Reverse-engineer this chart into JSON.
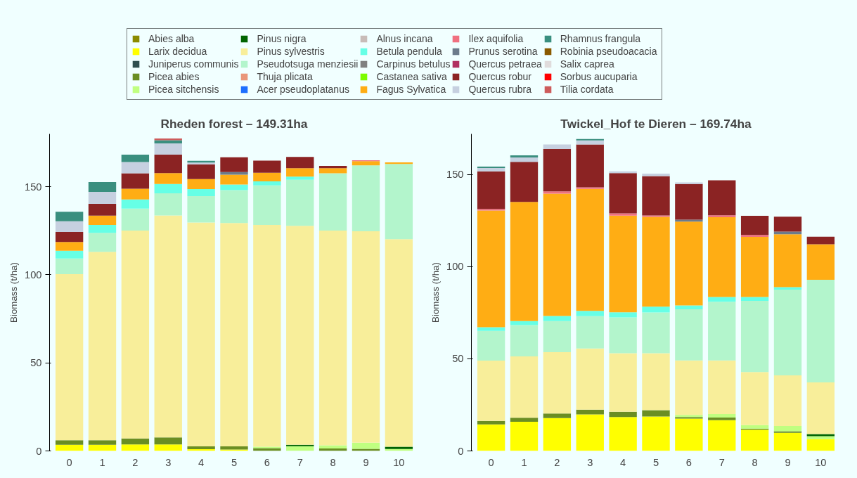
{
  "chart_data": [
    {
      "type": "bar",
      "stacked": true,
      "title": "Rheden forest – 149.31ha",
      "ylabel": "Biomass (t/ha)",
      "categories": [
        "0",
        "1",
        "2",
        "3",
        "4",
        "5",
        "6",
        "7",
        "8",
        "9",
        "10"
      ],
      "ylim": [
        0,
        180
      ],
      "yticks": [
        0,
        50,
        100,
        150
      ],
      "grid": false,
      "legend": "top",
      "series": [
        {
          "name": "Abies alba",
          "color": "#8b8b00",
          "values": [
            0,
            0,
            0,
            0,
            0,
            0,
            0,
            0,
            0,
            0,
            0
          ]
        },
        {
          "name": "Larix decidua",
          "color": "#ffff00",
          "values": [
            3.5,
            3.5,
            3.7,
            3.7,
            1.0,
            0.8,
            0,
            0,
            0,
            0,
            0
          ]
        },
        {
          "name": "Juniperus communis",
          "color": "#2f4f4f",
          "values": [
            0,
            0,
            0,
            0,
            0,
            0,
            0,
            0,
            0,
            0,
            0
          ]
        },
        {
          "name": "Picea abies",
          "color": "#6b8e23",
          "values": [
            2.6,
            2.6,
            3.4,
            4.0,
            1.6,
            1.8,
            1.6,
            0,
            1.4,
            1.2,
            0
          ]
        },
        {
          "name": "Picea sitchensis",
          "color": "#c0ff80",
          "values": [
            0,
            0,
            0,
            0,
            0,
            0,
            0.8,
            2.7,
            1.8,
            3.5,
            1.1
          ]
        },
        {
          "name": "Pinus nigra",
          "color": "#006400",
          "values": [
            0,
            0,
            0,
            0,
            0,
            0,
            0,
            0.8,
            0,
            0,
            1.3
          ]
        },
        {
          "name": "Pinus sylvestris",
          "color": "#f8ee9a",
          "values": [
            94.3,
            106.9,
            118,
            126,
            127.1,
            126.8,
            125.9,
            124.3,
            121.9,
            120,
            117.8
          ]
        },
        {
          "name": "Pseudotsuga menziesii",
          "color": "#b3f5cc",
          "values": [
            8.9,
            10.8,
            12.5,
            12.6,
            15,
            18.7,
            22.5,
            26.2,
            32.5,
            37.4,
            42.7
          ]
        },
        {
          "name": "Thuja plicata",
          "color": "#e9967a",
          "values": [
            0,
            0,
            0,
            0,
            0,
            0,
            0,
            0,
            0,
            0,
            0
          ]
        },
        {
          "name": "Acer pseudoplatanus",
          "color": "#1e6fff",
          "values": [
            0,
            0,
            0,
            0,
            0,
            0,
            0,
            0,
            0,
            0,
            0
          ]
        },
        {
          "name": "Alnus incana",
          "color": "#c8bcb8",
          "values": [
            0,
            0,
            0,
            0,
            0,
            0,
            0,
            0,
            0,
            0,
            0
          ]
        },
        {
          "name": "Betula pendula",
          "color": "#66ffe6",
          "values": [
            4.3,
            4.5,
            5.2,
            5.3,
            4,
            3.2,
            2.3,
            1.8,
            0,
            0,
            0
          ]
        },
        {
          "name": "Carpinus betulus",
          "color": "#808080",
          "values": [
            0,
            0,
            0,
            0,
            0,
            0,
            0,
            0,
            0,
            0,
            0
          ]
        },
        {
          "name": "Castanea sativa",
          "color": "#7cfc00",
          "values": [
            0,
            0,
            0,
            0,
            0,
            0,
            0,
            0,
            0,
            0,
            0
          ]
        },
        {
          "name": "Fagus Sylvatica",
          "color": "#ffad14",
          "values": [
            5,
            5.3,
            6.1,
            6.1,
            5.7,
            5.6,
            4.8,
            4.7,
            2.9,
            2.4,
            0.9
          ]
        },
        {
          "name": "Ilex aquifolia",
          "color": "#f07080",
          "values": [
            0,
            0,
            0,
            0,
            0,
            0,
            0,
            0,
            0,
            0.5,
            0
          ]
        },
        {
          "name": "Prunus serotina",
          "color": "#6c7b8b",
          "values": [
            0,
            0,
            0,
            0,
            0,
            1.4,
            0,
            0,
            0,
            0,
            0
          ]
        },
        {
          "name": "Quercus petraea",
          "color": "#b03060",
          "values": [
            0,
            0,
            0,
            0,
            0,
            0,
            0,
            0,
            0,
            0,
            0
          ]
        },
        {
          "name": "Quercus robur",
          "color": "#8b2323",
          "values": [
            5.7,
            6.7,
            8.7,
            10.5,
            8.2,
            8.4,
            6.9,
            6.4,
            1.3,
            0,
            0
          ]
        },
        {
          "name": "Quercus rubra",
          "color": "#c6d0e0",
          "values": [
            6.1,
            6.8,
            6.4,
            6.4,
            1.1,
            0,
            0,
            0,
            0,
            0,
            0
          ]
        },
        {
          "name": "Rhamnus frangula",
          "color": "#3a8f7f",
          "values": [
            5.4,
            5.6,
            4.2,
            1.8,
            1.0,
            0,
            0,
            0,
            0,
            0,
            0
          ]
        },
        {
          "name": "Robinia pseudoacacia",
          "color": "#8b5a00",
          "values": [
            0,
            0,
            0,
            0,
            0,
            0,
            0,
            0,
            0,
            0,
            0
          ]
        },
        {
          "name": "Salix caprea",
          "color": "#e0dcdc",
          "values": [
            0,
            0,
            0,
            0,
            0,
            0,
            0,
            0,
            0,
            0,
            0
          ]
        },
        {
          "name": "Sorbus aucuparia",
          "color": "#ff0000",
          "values": [
            0,
            0,
            0,
            0,
            0,
            0,
            0,
            0,
            0,
            0,
            0
          ]
        },
        {
          "name": "Tilia cordata",
          "color": "#cd5c5c",
          "values": [
            0,
            0,
            0,
            1.0,
            0,
            0,
            0,
            0,
            0,
            0,
            0
          ]
        }
      ]
    },
    {
      "type": "bar",
      "stacked": true,
      "title": "Twickel_Hof te Dieren – 169.74ha",
      "ylabel": "Biomass (t/ha)",
      "categories": [
        "0",
        "1",
        "2",
        "3",
        "4",
        "5",
        "6",
        "7",
        "8",
        "9",
        "10"
      ],
      "ylim": [
        0,
        172
      ],
      "yticks": [
        0,
        50,
        100,
        150
      ],
      "grid": false,
      "series": [
        {
          "color": "#8b8b00",
          "values": [
            0,
            0,
            0,
            0,
            0,
            0,
            0,
            0,
            0,
            0,
            0
          ]
        },
        {
          "color": "#ffff00",
          "values": [
            14.4,
            15.8,
            17.8,
            19.8,
            18.4,
            18.7,
            17.5,
            16.7,
            11.5,
            9.8,
            6.4
          ]
        },
        {
          "color": "#2f4f4f",
          "values": [
            0,
            0,
            0,
            0,
            0,
            0,
            0,
            0,
            0,
            0,
            0
          ]
        },
        {
          "color": "#6b8e23",
          "values": [
            1.9,
            2.2,
            2.5,
            2.6,
            2.9,
            3.4,
            0.9,
            1.4,
            0.6,
            0.9,
            0
          ]
        },
        {
          "color": "#c0ff80",
          "values": [
            0,
            0,
            0,
            0,
            0,
            0,
            1.1,
            1.9,
            1.9,
            2.8,
            1.6
          ]
        },
        {
          "color": "#006400",
          "values": [
            0,
            0,
            0,
            0,
            0,
            0,
            0,
            0,
            0,
            0,
            1.2
          ]
        },
        {
          "color": "#f8ee9a",
          "values": [
            32.7,
            33.3,
            33.3,
            33.2,
            31.7,
            30.9,
            29.6,
            29.1,
            28.8,
            27.5,
            28
          ]
        },
        {
          "color": "#b3f5cc",
          "values": [
            16.1,
            17,
            16.9,
            17.5,
            19.5,
            22.1,
            27.7,
            31.8,
            38.6,
            46.5,
            55.7
          ]
        },
        {
          "color": "#e9967a",
          "values": [
            0,
            0,
            0,
            0,
            0,
            0,
            0,
            0,
            0,
            0,
            0
          ]
        },
        {
          "color": "#1e6fff",
          "values": [
            0,
            0,
            0,
            0,
            0,
            0,
            0,
            0,
            0,
            0,
            0
          ]
        },
        {
          "color": "#c8bcb8",
          "values": [
            0,
            0,
            0,
            0,
            0,
            0,
            0,
            0,
            0,
            0,
            0
          ]
        },
        {
          "color": "#66ffe6",
          "values": [
            2,
            2.2,
            2.7,
            2.9,
            2.7,
            3.2,
            2.1,
            2.6,
            2.1,
            1.4,
            0
          ]
        },
        {
          "color": "#808080",
          "values": [
            0,
            0,
            0,
            0,
            0,
            0,
            0,
            0,
            0,
            0,
            0
          ]
        },
        {
          "color": "#7cfc00",
          "values": [
            0,
            0,
            0,
            0,
            0,
            0,
            0,
            0,
            0,
            0,
            0
          ]
        },
        {
          "color": "#ffad14",
          "values": [
            63.3,
            64.6,
            66.4,
            66.2,
            52.5,
            48.7,
            45.5,
            43.3,
            32.6,
            28.7,
            19.2
          ]
        },
        {
          "color": "#f07080",
          "values": [
            0.9,
            0,
            1.2,
            0.8,
            1.2,
            0.8,
            0,
            1.1,
            1.1,
            0,
            0
          ]
        },
        {
          "color": "#6c7b8b",
          "values": [
            0,
            0,
            0,
            0,
            0,
            0,
            1.1,
            0,
            0,
            1.4,
            0
          ]
        },
        {
          "color": "#b03060",
          "values": [
            0,
            0,
            0,
            0,
            0,
            0,
            0,
            0,
            0,
            0,
            0
          ]
        },
        {
          "color": "#8b2323",
          "values": [
            20.4,
            21.7,
            23,
            23.3,
            21.8,
            21.3,
            19.3,
            18.9,
            10.4,
            8.1,
            4.1
          ]
        },
        {
          "color": "#c6d0e0",
          "values": [
            1.8,
            2.4,
            2.5,
            2.2,
            1,
            1.4,
            0.9,
            0,
            0,
            0,
            0
          ]
        },
        {
          "color": "#3a8f7f",
          "values": [
            0.8,
            1.2,
            0,
            0.7,
            0,
            0,
            0,
            0,
            0,
            0,
            0
          ]
        },
        {
          "color": "#8b5a00",
          "values": [
            0,
            0,
            0,
            0,
            0,
            0,
            0,
            0,
            0,
            0,
            0
          ]
        },
        {
          "color": "#e0dcdc",
          "values": [
            0,
            0,
            0,
            0,
            0,
            0,
            0,
            0,
            0,
            0,
            0
          ]
        },
        {
          "color": "#ff0000",
          "values": [
            0,
            0,
            0,
            0,
            0,
            0,
            0,
            0,
            0,
            0,
            0
          ]
        },
        {
          "color": "#cd5c5c",
          "values": [
            0,
            0,
            0,
            0,
            0,
            0,
            0,
            0,
            0,
            0,
            0
          ]
        }
      ]
    }
  ]
}
